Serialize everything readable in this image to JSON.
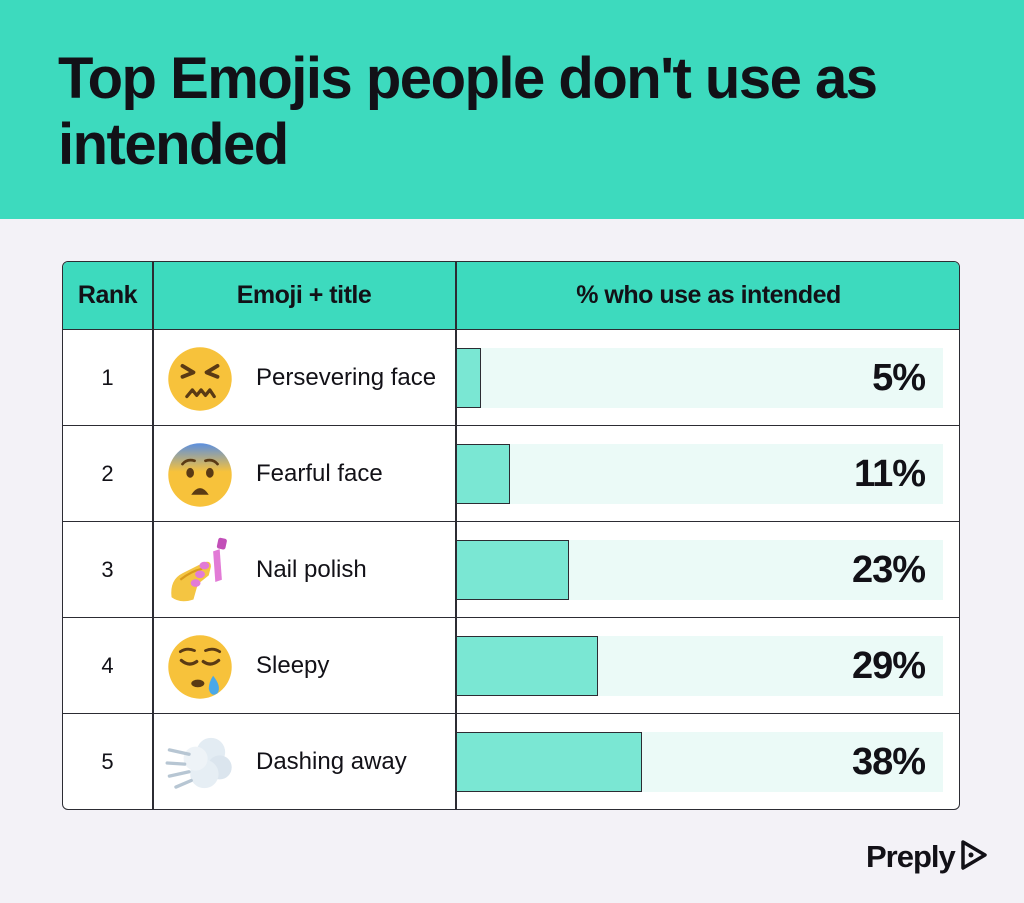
{
  "header": {
    "title": "Top Emojis people don't use as intended"
  },
  "table": {
    "columns": [
      "Rank",
      "Emoji + title",
      "% who use as intended"
    ],
    "rows": [
      {
        "rank": "1",
        "emoji_icon": "persevering-face-icon",
        "title": "Persevering face",
        "percent_label": "5%"
      },
      {
        "rank": "2",
        "emoji_icon": "fearful-face-icon",
        "title": "Fearful face",
        "percent_label": "11%"
      },
      {
        "rank": "3",
        "emoji_icon": "nail-polish-icon",
        "title": "Nail polish",
        "percent_label": "23%"
      },
      {
        "rank": "4",
        "emoji_icon": "sleepy-face-icon",
        "title": "Sleepy",
        "percent_label": "29%"
      },
      {
        "rank": "5",
        "emoji_icon": "dashing-away-icon",
        "title": "Dashing away",
        "percent_label": "38%"
      }
    ]
  },
  "chart_data": {
    "type": "bar",
    "orientation": "horizontal",
    "categories": [
      "Persevering face",
      "Fearful face",
      "Nail polish",
      "Sleepy",
      "Dashing away"
    ],
    "values": [
      5,
      11,
      23,
      29,
      38
    ],
    "ylim": [
      0,
      100
    ],
    "grid": false,
    "colors": {
      "bar": "#7ae7d3",
      "track": "#ebfaf7",
      "header": "#3ddabe"
    }
  },
  "brand": {
    "name": "Preply",
    "icon": "preply-logo-icon"
  }
}
